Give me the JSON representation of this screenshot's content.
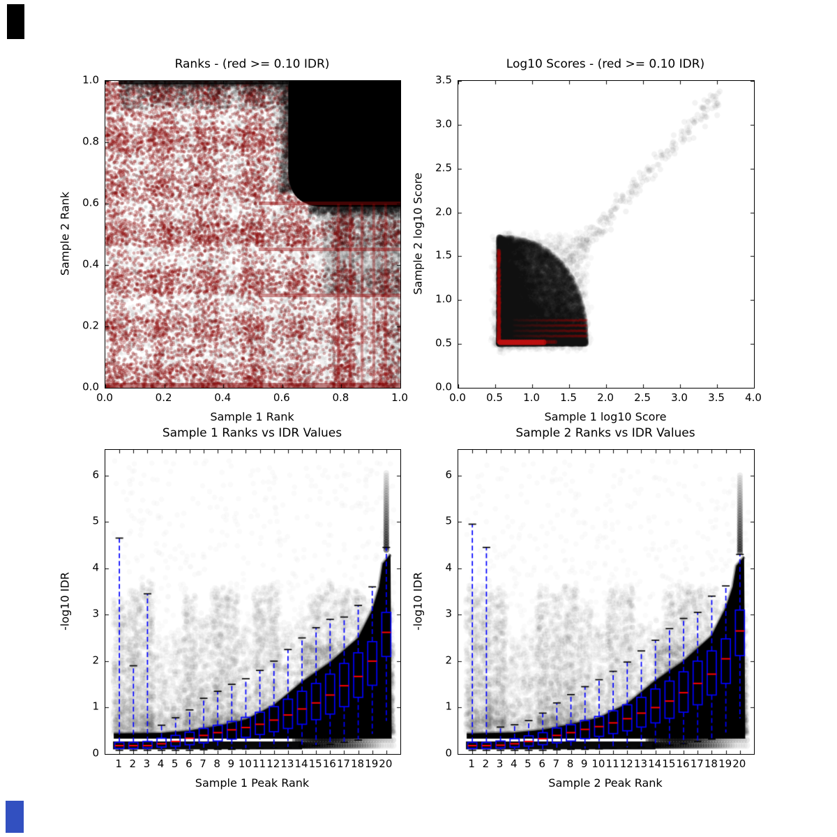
{
  "figure": {
    "background": "#ffffff",
    "text_color": "#000000",
    "artifacts": [
      {
        "name": "top-left-black-swatch",
        "color": "#000000"
      },
      {
        "name": "bottom-left-blue-swatch",
        "color": "#3250c0"
      }
    ]
  },
  "colors": {
    "significant_red": "#8b0000",
    "point_black": "#000000",
    "box_blue": "#0000ff",
    "median_red": "#ff0000",
    "whisker_blue": "#0000ff",
    "cap_black": "#000000"
  },
  "chart_data": [
    {
      "type": "scatter",
      "title": "Ranks - (red >= 0.10 IDR)",
      "xlabel": "Sample 1 Rank",
      "ylabel": "Sample 2 Rank",
      "xlim": [
        0,
        1
      ],
      "ylim": [
        0,
        1
      ],
      "xticks": {
        "values": [
          0,
          0.2,
          0.4,
          0.6,
          0.8,
          1
        ],
        "labels": [
          "0.0",
          "0.2",
          "0.4",
          "0.6",
          "0.8",
          "1.0"
        ]
      },
      "yticks": {
        "values": [
          0,
          0.2,
          0.4,
          0.6,
          0.8,
          1
        ],
        "labels": [
          "0.0",
          "0.2",
          "0.4",
          "0.6",
          "0.8",
          "1.0"
        ]
      },
      "legend_note": "red points = peaks with IDR >= 0.10, black points = IDR < 0.10",
      "pattern": {
        "description": "dense checkerboard of dark-red irreproducible points over black points across the whole rank space; solid black reproducible cluster in the upper-right corner",
        "black_cluster": {
          "x_range": [
            0.62,
            1.0
          ],
          "y_range": [
            0.59,
            1.0
          ]
        },
        "red_row_bands_y": [
          0.3,
          0.45,
          0.6
        ],
        "red_column_bands_x": [
          0.79,
          0.83,
          0.87,
          0.91,
          0.95
        ]
      }
    },
    {
      "type": "scatter",
      "title": "Log10 Scores - (red >= 0.10 IDR)",
      "xlabel": "Sample 1 log10 Score",
      "ylabel": "Sample 2 log10 Score",
      "xlim": [
        0,
        4
      ],
      "ylim": [
        0,
        3.5
      ],
      "xticks": {
        "values": [
          0,
          0.5,
          1,
          1.5,
          2,
          2.5,
          3,
          3.5,
          4
        ],
        "labels": [
          "0.0",
          "0.5",
          "1.0",
          "1.5",
          "2.0",
          "2.5",
          "3.0",
          "3.5",
          "4.0"
        ]
      },
      "yticks": {
        "values": [
          0,
          0.5,
          1,
          1.5,
          2,
          2.5,
          3,
          3.5
        ],
        "labels": [
          "0.0",
          "0.5",
          "1.0",
          "1.5",
          "2.0",
          "2.5",
          "3.0",
          "3.5"
        ]
      },
      "clusters": {
        "core": {
          "x_range": [
            0.55,
            1.75
          ],
          "y_range": [
            0.5,
            1.75
          ],
          "density": "very high, nearly solid black"
        },
        "tail": {
          "from": [
            1.55,
            1.5
          ],
          "to": [
            3.55,
            3.35
          ],
          "density": "sparse translucent gray, correlated diagonal"
        },
        "red_vertical_line_x": 0.55,
        "red_dot_row": {
          "y": 0.52,
          "x_range": [
            0.57,
            1.17
          ]
        },
        "red_streak_rows_y": [
          0.59,
          0.65,
          0.71,
          0.77
        ]
      }
    },
    {
      "type": "boxplot_scatter",
      "title": "Sample 1 Ranks vs IDR Values",
      "xlabel": "Sample 1 Peak Rank",
      "ylabel": "-log10 IDR",
      "xlim": [
        0,
        21
      ],
      "ylim": [
        0,
        6.55
      ],
      "xticks": {
        "values": [
          1,
          2,
          3,
          4,
          5,
          6,
          7,
          8,
          9,
          10,
          11,
          12,
          13,
          14,
          15,
          16,
          17,
          18,
          19,
          20
        ],
        "labels": [
          "1",
          "2",
          "3",
          "4",
          "5",
          "6",
          "7",
          "8",
          "9",
          "10",
          "11",
          "12",
          "13",
          "14",
          "15",
          "16",
          "17",
          "18",
          "19",
          "20"
        ]
      },
      "yticks": {
        "values": [
          0,
          1,
          2,
          3,
          4,
          5,
          6
        ],
        "labels": [
          "0",
          "1",
          "2",
          "3",
          "4",
          "5",
          "6"
        ]
      },
      "categories": [
        1,
        2,
        3,
        4,
        5,
        6,
        7,
        8,
        9,
        10,
        11,
        12,
        13,
        14,
        15,
        16,
        17,
        18,
        19,
        20
      ],
      "box_format": [
        "whisker_low",
        "q1",
        "median",
        "q3",
        "whisker_high"
      ],
      "boxes": [
        [
          0.08,
          0.12,
          0.18,
          0.25,
          4.65
        ],
        [
          0.08,
          0.12,
          0.18,
          0.25,
          1.9
        ],
        [
          0.08,
          0.13,
          0.18,
          0.27,
          3.45
        ],
        [
          0.08,
          0.15,
          0.22,
          0.34,
          0.62
        ],
        [
          0.08,
          0.17,
          0.27,
          0.4,
          0.78
        ],
        [
          0.08,
          0.2,
          0.34,
          0.47,
          0.95
        ],
        [
          0.09,
          0.24,
          0.4,
          0.55,
          1.2
        ],
        [
          0.1,
          0.28,
          0.46,
          0.62,
          1.35
        ],
        [
          0.1,
          0.32,
          0.52,
          0.7,
          1.5
        ],
        [
          0.11,
          0.36,
          0.57,
          0.79,
          1.62
        ],
        [
          0.12,
          0.42,
          0.64,
          0.9,
          1.8
        ],
        [
          0.13,
          0.48,
          0.73,
          1.02,
          2.0
        ],
        [
          0.14,
          0.55,
          0.84,
          1.18,
          2.25
        ],
        [
          0.16,
          0.64,
          0.97,
          1.35,
          2.5
        ],
        [
          0.18,
          0.74,
          1.1,
          1.52,
          2.72
        ],
        [
          0.21,
          0.86,
          1.27,
          1.72,
          2.9
        ],
        [
          0.25,
          1.02,
          1.47,
          1.95,
          2.95
        ],
        [
          0.3,
          1.22,
          1.67,
          2.18,
          3.2
        ],
        [
          0.42,
          1.48,
          2.0,
          2.42,
          3.6
        ],
        [
          0.7,
          2.1,
          2.62,
          3.05,
          4.45
        ]
      ],
      "envelope": [
        [
          0.6,
          0.44
        ],
        [
          4,
          0.45
        ],
        [
          6,
          0.5
        ],
        [
          8,
          0.6
        ],
        [
          10,
          0.74
        ],
        [
          12,
          1.05
        ],
        [
          14,
          1.55
        ],
        [
          16,
          1.97
        ],
        [
          18,
          2.5
        ],
        [
          19,
          3.1
        ],
        [
          19.5,
          3.6
        ],
        [
          19.75,
          4.1
        ],
        [
          20.3,
          4.3
        ]
      ],
      "column_density": [
        0.65,
        0.75,
        0.85,
        0.15,
        0.2,
        0.7,
        0.45,
        0.8,
        0.75,
        0.3,
        0.75,
        0.8,
        0.3,
        0.35,
        0.75,
        0.8,
        0.75,
        0.7,
        0.55,
        0.6
      ],
      "top_column": {
        "x": 20,
        "y_range": [
          4.4,
          6.05
        ]
      }
    },
    {
      "type": "boxplot_scatter",
      "title": "Sample 2 Ranks vs IDR Values",
      "xlabel": "Sample 2 Peak Rank",
      "ylabel": "-log10 IDR",
      "xlim": [
        0,
        21
      ],
      "ylim": [
        0,
        6.55
      ],
      "xticks": {
        "values": [
          1,
          2,
          3,
          4,
          5,
          6,
          7,
          8,
          9,
          10,
          11,
          12,
          13,
          14,
          15,
          16,
          17,
          18,
          19,
          20
        ],
        "labels": [
          "1",
          "2",
          "3",
          "4",
          "5",
          "6",
          "7",
          "8",
          "9",
          "10",
          "11",
          "12",
          "13",
          "14",
          "15",
          "16",
          "17",
          "18",
          "19",
          "20"
        ]
      },
      "yticks": {
        "values": [
          0,
          1,
          2,
          3,
          4,
          5,
          6
        ],
        "labels": [
          "0",
          "1",
          "2",
          "3",
          "4",
          "5",
          "6"
        ]
      },
      "categories": [
        1,
        2,
        3,
        4,
        5,
        6,
        7,
        8,
        9,
        10,
        11,
        12,
        13,
        14,
        15,
        16,
        17,
        18,
        19,
        20
      ],
      "box_format": [
        "whisker_low",
        "q1",
        "median",
        "q3",
        "whisker_high"
      ],
      "boxes": [
        [
          0.08,
          0.12,
          0.18,
          0.25,
          4.95
        ],
        [
          0.08,
          0.12,
          0.18,
          0.25,
          4.45
        ],
        [
          0.08,
          0.13,
          0.19,
          0.28,
          0.58
        ],
        [
          0.08,
          0.15,
          0.22,
          0.33,
          0.63
        ],
        [
          0.08,
          0.17,
          0.27,
          0.39,
          0.72
        ],
        [
          0.08,
          0.2,
          0.33,
          0.46,
          0.88
        ],
        [
          0.09,
          0.24,
          0.4,
          0.56,
          1.1
        ],
        [
          0.1,
          0.28,
          0.46,
          0.63,
          1.28
        ],
        [
          0.1,
          0.33,
          0.53,
          0.72,
          1.45
        ],
        [
          0.11,
          0.38,
          0.59,
          0.81,
          1.6
        ],
        [
          0.12,
          0.44,
          0.67,
          0.93,
          1.78
        ],
        [
          0.13,
          0.5,
          0.76,
          1.06,
          1.98
        ],
        [
          0.15,
          0.58,
          0.88,
          1.22,
          2.22
        ],
        [
          0.17,
          0.67,
          1.0,
          1.4,
          2.45
        ],
        [
          0.19,
          0.77,
          1.14,
          1.57,
          2.7
        ],
        [
          0.22,
          0.9,
          1.32,
          1.77,
          2.92
        ],
        [
          0.27,
          1.06,
          1.52,
          2.0,
          3.05
        ],
        [
          0.32,
          1.27,
          1.72,
          2.22,
          3.4
        ],
        [
          0.45,
          1.52,
          2.05,
          2.48,
          3.62
        ],
        [
          0.75,
          2.12,
          2.65,
          3.1,
          4.3
        ]
      ],
      "envelope": [
        [
          0.6,
          0.44
        ],
        [
          4,
          0.46
        ],
        [
          6,
          0.52
        ],
        [
          8,
          0.64
        ],
        [
          10,
          0.78
        ],
        [
          12,
          1.08
        ],
        [
          14,
          1.58
        ],
        [
          16,
          2.0
        ],
        [
          18,
          2.55
        ],
        [
          19,
          3.15
        ],
        [
          19.5,
          3.6
        ],
        [
          19.75,
          4.05
        ],
        [
          20.3,
          4.25
        ]
      ],
      "column_density": [
        0.75,
        0.8,
        0.75,
        0.15,
        0.2,
        0.75,
        0.7,
        0.8,
        0.55,
        0.3,
        0.75,
        0.75,
        0.3,
        0.35,
        0.75,
        0.8,
        0.75,
        0.7,
        0.55,
        0.6
      ],
      "top_column": {
        "x": 20,
        "y_range": [
          4.35,
          6.05
        ]
      }
    }
  ]
}
